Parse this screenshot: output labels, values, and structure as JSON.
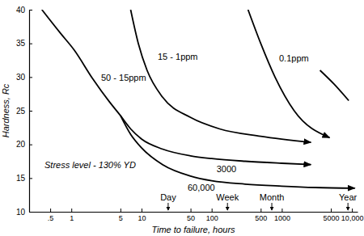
{
  "chart_data": {
    "type": "line",
    "x_label": "Time to failure, hours",
    "y_label": "Hardness, Rc",
    "log": "x",
    "grid": false,
    "xlim": [
      0.25,
      12000
    ],
    "xticks": [
      {
        "value": 0.5,
        "label": ".5"
      },
      1,
      5,
      10,
      50,
      100,
      500,
      1000,
      5000,
      {
        "value": 10000,
        "label": "10,000"
      }
    ],
    "ylim": [
      10,
      40
    ],
    "yticks": [
      10,
      15,
      20,
      25,
      30,
      35,
      40
    ],
    "series": [
      {
        "name": "50 - 15ppm",
        "color": "#000000",
        "line_style": "solid",
        "marker": "none",
        "x": [
          0.38,
          0.7,
          1.1,
          2,
          3.5,
          5
        ],
        "values": [
          40,
          36.5,
          34,
          29.8,
          26.3,
          24.3
        ]
      },
      {
        "name": "15 - 1ppm",
        "color": "#000000",
        "line_style": "solid",
        "marker": "arrow",
        "x": [
          7,
          9,
          12,
          20,
          50,
          130,
          500,
          2600
        ],
        "values": [
          40,
          35,
          31,
          27,
          24,
          22.3,
          21.2,
          20.3
        ]
      },
      {
        "color": "#000000",
        "line_style": "solid",
        "marker": "arrow",
        "x": [
          330,
          500,
          800,
          1500,
          4800
        ],
        "values": [
          40,
          35,
          30,
          25,
          21
        ]
      },
      {
        "name": "0.1ppm",
        "color": "#000000",
        "line_style": "solid",
        "marker": "none",
        "x": [
          3500,
          5500,
          9000
        ],
        "values": [
          31,
          29,
          26.5
        ]
      },
      {
        "name": "3000",
        "color": "#000000",
        "line_style": "solid",
        "marker": "arrow",
        "x": [
          5,
          7,
          10,
          20,
          50,
          100,
          300,
          1000,
          2600
        ],
        "values": [
          24.3,
          22.3,
          20.8,
          19.3,
          18.3,
          17.9,
          17.5,
          17.2,
          17
        ]
      },
      {
        "name": "60,000",
        "color": "#000000",
        "line_style": "solid",
        "marker": "arrow",
        "x": [
          5,
          7,
          10,
          20,
          50,
          100,
          300,
          1000,
          3000,
          11000
        ],
        "values": [
          24.3,
          21.5,
          19.5,
          17,
          15.3,
          14.6,
          14.1,
          13.8,
          13.6,
          13.5
        ]
      }
    ],
    "annotations": [
      {
        "text": "Stress level - 130% YD"
      },
      {
        "text": "Day",
        "x": 24
      },
      {
        "text": "Week",
        "x": 168
      },
      {
        "text": "Month",
        "x": 720
      },
      {
        "text": "Year",
        "x": 8760
      }
    ]
  }
}
